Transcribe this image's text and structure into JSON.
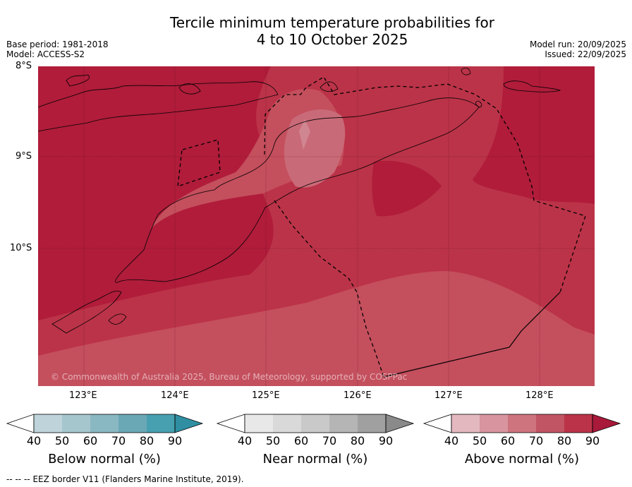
{
  "title": {
    "line1": "Tercile minimum temperature probabilities for",
    "line2": "4 to 10 October 2025"
  },
  "meta": {
    "base_period": "Base period: 1981-2018",
    "model": "Model: ACCESS-S2",
    "model_run": "Model run: 20/09/2025",
    "issued": "Issued: 22/09/2025"
  },
  "map": {
    "lat_labels": [
      "8°S",
      "9°S",
      "10°S"
    ],
    "lon_labels": [
      "123°E",
      "124°E",
      "125°E",
      "126°E",
      "127°E",
      "128°E"
    ],
    "copyright": "© Commonwealth of Australia 2025, Bureau of Meteorology, supported by COSPPac",
    "colors": {
      "above_90": "#b01c3a",
      "above_80": "#bb3348",
      "above_70": "#c44f5d",
      "near_light": "#c96a78"
    }
  },
  "colorbars": [
    {
      "caption": "Below normal (%)",
      "ticks": [
        "40",
        "50",
        "60",
        "70",
        "80",
        "90"
      ],
      "colors": [
        "#bed4da",
        "#a6c6cd",
        "#8ab8c2",
        "#6aa8b6",
        "#47a0b0",
        "#2f8ea2"
      ]
    },
    {
      "caption": "Near normal (%)",
      "ticks": [
        "40",
        "50",
        "60",
        "70",
        "80",
        "90"
      ],
      "colors": [
        "#e8e8e8",
        "#d9d9d9",
        "#c9c9c9",
        "#b5b5b5",
        "#a0a0a0",
        "#8a8a8a"
      ]
    },
    {
      "caption": "Above normal (%)",
      "ticks": [
        "40",
        "50",
        "60",
        "70",
        "80",
        "90"
      ],
      "colors": [
        "#e3b8bf",
        "#d8959f",
        "#cd747f",
        "#c25563",
        "#bb3348",
        "#a8193a"
      ]
    }
  ],
  "footer": {
    "legend_symbol": "-- -- --",
    "legend_text": "EEZ border V11 (Flanders Marine Institute, 2019)."
  }
}
